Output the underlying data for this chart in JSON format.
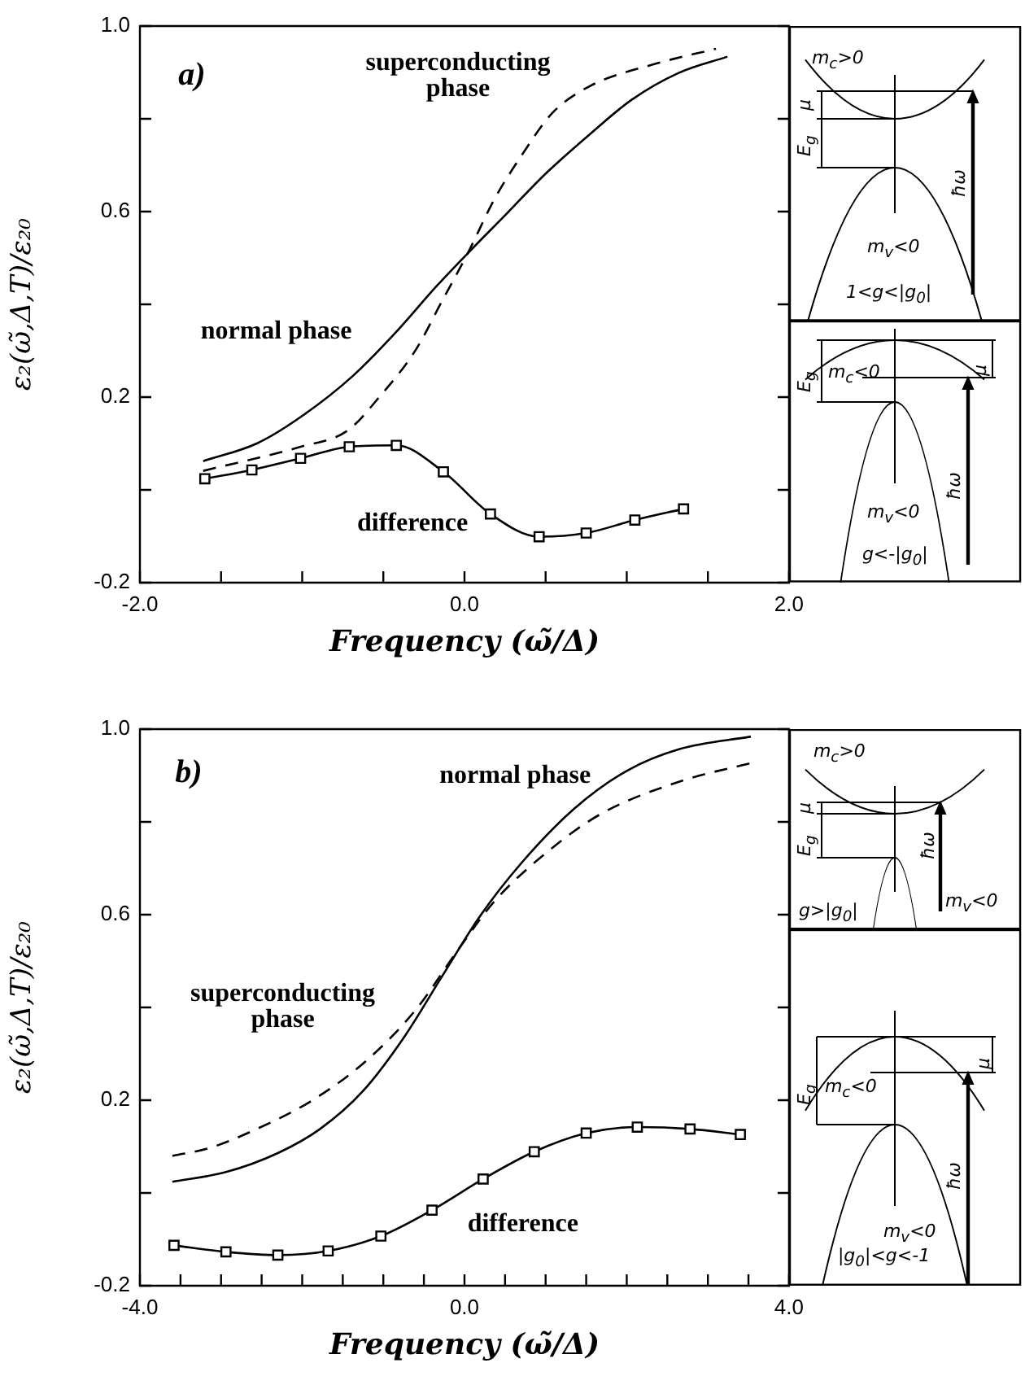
{
  "chart_data": [
    {
      "type": "line",
      "xlabel": "Frequency (ω̃/Δ)",
      "ylabel": "ε₂(ω̃,Δ,T)/ε₂₀",
      "xlim": [
        -2,
        2
      ],
      "ylim": [
        -0.2,
        1
      ],
      "xticks": [
        {
          "value": -2,
          "label": "-2.0"
        },
        {
          "value": -1.5,
          "label": null
        },
        {
          "value": -1,
          "label": null
        },
        {
          "value": -0.5,
          "label": null
        },
        {
          "value": 0,
          "label": "0.0"
        },
        {
          "value": 0.5,
          "label": null
        },
        {
          "value": 1,
          "label": null
        },
        {
          "value": 1.5,
          "label": null
        },
        {
          "value": 2,
          "label": "2.0"
        }
      ],
      "yticks": [
        {
          "value": -0.2,
          "label": "-0.2"
        },
        {
          "value": 0,
          "label": null
        },
        {
          "value": 0.2,
          "label": "0.2"
        },
        {
          "value": 0.4,
          "label": null
        },
        {
          "value": 0.6,
          "label": "0.6"
        },
        {
          "value": 0.8,
          "label": null
        },
        {
          "value": 1,
          "label": "1.0"
        }
      ],
      "annotations": [
        "a)",
        "m$_{c}$>0",
        "μ",
        "E$_{g}$",
        "ħω",
        "m$_{v}$<0",
        "1<g<|g$_{0}$|",
        "E$_{g}$",
        "m$_{c}$<0",
        "μ",
        "ħω",
        "m$_{v}$<0",
        "g<-|g$_{0}$|"
      ],
      "series": [
        {
          "name": "normal phase",
          "color": "#000000",
          "line_style": "solid",
          "marker": "none",
          "x": [
            -1.61,
            -1.28,
            -1.01,
            -0.69,
            -0.43,
            -0.17,
            0.02,
            0.25,
            0.51,
            0.77,
            1.03,
            1.32,
            1.62
          ],
          "values": [
            0.062,
            0.1,
            0.157,
            0.245,
            0.337,
            0.44,
            0.51,
            0.592,
            0.685,
            0.766,
            0.841,
            0.899,
            0.934
          ]
        },
        {
          "name": "superconducting phase",
          "color": "#000000",
          "line_style": "dashed",
          "marker": "none",
          "x": [
            -1.61,
            -1.01,
            -0.72,
            -0.53,
            -0.3,
            -0.14,
            0.02,
            0.185,
            0.35,
            0.54,
            0.77,
            1.16,
            1.55
          ],
          "values": [
            0.041,
            0.093,
            0.128,
            0.198,
            0.302,
            0.406,
            0.51,
            0.627,
            0.72,
            0.812,
            0.87,
            0.917,
            0.951
          ]
        },
        {
          "name": "difference",
          "color": "#000000",
          "line_style": "solid",
          "marker": "square",
          "x": [
            -1.6,
            -1.31,
            -1.01,
            -0.71,
            -0.42,
            -0.13,
            0.16,
            0.46,
            0.75,
            1.05,
            1.35
          ],
          "values": [
            0.024,
            0.043,
            0.068,
            0.093,
            0.096,
            0.039,
            -0.052,
            -0.101,
            -0.093,
            -0.065,
            -0.041
          ]
        }
      ]
    },
    {
      "type": "line",
      "xlabel": "Frequency (ω̃/Δ)",
      "ylabel": "ε₂(ω̃,Δ,T)/ε₂₀",
      "xlim": [
        -4,
        4
      ],
      "ylim": [
        -0.2,
        1
      ],
      "xticks": [
        {
          "value": -4,
          "label": "-4.0"
        },
        {
          "value": -3.5,
          "label": null
        },
        {
          "value": -3,
          "label": null
        },
        {
          "value": -2.5,
          "label": null
        },
        {
          "value": -2,
          "label": null
        },
        {
          "value": -1.5,
          "label": null
        },
        {
          "value": -1,
          "label": null
        },
        {
          "value": -0.5,
          "label": null
        },
        {
          "value": 0,
          "label": "0.0"
        },
        {
          "value": 0.5,
          "label": null
        },
        {
          "value": 1,
          "label": null
        },
        {
          "value": 1.5,
          "label": null
        },
        {
          "value": 2,
          "label": null
        },
        {
          "value": 2.5,
          "label": null
        },
        {
          "value": 3,
          "label": null
        },
        {
          "value": 3.5,
          "label": null
        },
        {
          "value": 4,
          "label": "4.0"
        }
      ],
      "yticks": [
        {
          "value": -0.2,
          "label": "-0.2"
        },
        {
          "value": 0,
          "label": null
        },
        {
          "value": 0.2,
          "label": "0.2"
        },
        {
          "value": 0.4,
          "label": null
        },
        {
          "value": 0.6,
          "label": "0.6"
        },
        {
          "value": 0.8,
          "label": null
        },
        {
          "value": 1,
          "label": "1.0"
        }
      ],
      "annotations": [
        "b)",
        "m$_{c}$>0",
        "μ",
        "E$_{g}$",
        "ħω",
        "m$_{v}$<0",
        "g>|g$_{0}$|",
        "E$_{g}$",
        "m$_{c}$<0",
        "μ",
        "ħω",
        "m$_{v}$<0",
        "|g$_{0}$|<g<-1"
      ],
      "series": [
        {
          "name": "normal phase",
          "color": "#000000",
          "line_style": "solid",
          "marker": "none",
          "x": [
            -3.6,
            -2.94,
            -2.3,
            -1.78,
            -1.25,
            -0.74,
            -0.28,
            0.18,
            0.7,
            1.35,
            2.0,
            2.65,
            3.53
          ],
          "values": [
            0.024,
            0.045,
            0.086,
            0.138,
            0.22,
            0.337,
            0.466,
            0.594,
            0.711,
            0.828,
            0.91,
            0.957,
            0.984
          ]
        },
        {
          "name": "superconducting phase",
          "color": "#000000",
          "line_style": "dashed",
          "marker": "none",
          "x": [
            -3.6,
            -3.14,
            -2.56,
            -1.91,
            -1.25,
            -0.6,
            -0.08,
            0.37,
            1.02,
            1.67,
            2.65,
            3.56
          ],
          "values": [
            0.08,
            0.097,
            0.138,
            0.196,
            0.279,
            0.395,
            0.524,
            0.629,
            0.735,
            0.816,
            0.887,
            0.928
          ]
        },
        {
          "name": "difference",
          "color": "#000000",
          "line_style": "solid",
          "marker": "square",
          "x": [
            -3.58,
            -2.94,
            -2.3,
            -1.68,
            -1.03,
            -0.4,
            0.23,
            0.86,
            1.5,
            2.13,
            2.78,
            3.4
          ],
          "values": [
            -0.113,
            -0.127,
            -0.134,
            -0.125,
            -0.093,
            -0.037,
            0.03,
            0.089,
            0.129,
            0.142,
            0.138,
            0.126
          ]
        }
      ]
    }
  ]
}
